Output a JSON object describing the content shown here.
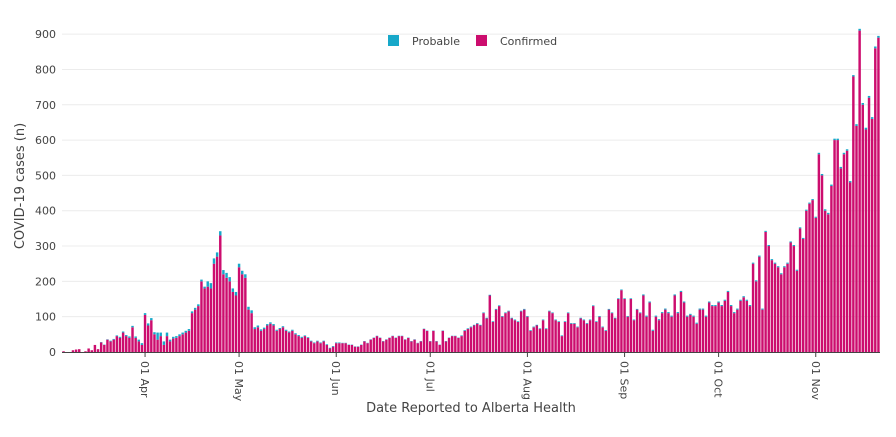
{
  "chart_data": {
    "type": "bar",
    "stacked": true,
    "xlabel": "Date Reported to Alberta Health",
    "ylabel": "COVID-19 cases (n)",
    "ylim": [
      0,
      940
    ],
    "yticks": [
      0,
      100,
      200,
      300,
      400,
      500,
      600,
      700,
      800,
      900
    ],
    "grid": true,
    "legend_position": "top-center",
    "x_start_date": "2020-03-06",
    "xticks": [
      {
        "label": "01 Apr",
        "date": "2020-04-01"
      },
      {
        "label": "01 May",
        "date": "2020-05-01"
      },
      {
        "label": "01 Jun",
        "date": "2020-06-01"
      },
      {
        "label": "01 Jul",
        "date": "2020-07-01"
      },
      {
        "label": "01 Aug",
        "date": "2020-08-01"
      },
      {
        "label": "01 Sep",
        "date": "2020-09-01"
      },
      {
        "label": "01 Oct",
        "date": "2020-10-01"
      },
      {
        "label": "01 Nov",
        "date": "2020-11-01"
      }
    ],
    "series": [
      {
        "name": "Probable",
        "color": "#17a8c9",
        "values": [
          0,
          0,
          0,
          0,
          0,
          0,
          0,
          0,
          0,
          0,
          0,
          0,
          1,
          1,
          1,
          2,
          2,
          2,
          3,
          3,
          3,
          4,
          4,
          4,
          5,
          5,
          5,
          6,
          6,
          6,
          20,
          10,
          10,
          10,
          5,
          5,
          5,
          5,
          5,
          5,
          5,
          5,
          5,
          5,
          5,
          5,
          15,
          15,
          15,
          12,
          12,
          12,
          14,
          12,
          10,
          10,
          10,
          10,
          10,
          8,
          8,
          5,
          5,
          4,
          4,
          4,
          4,
          4,
          3,
          3,
          3,
          3,
          3,
          3,
          3,
          3,
          3,
          2,
          2,
          2,
          2,
          2,
          2,
          2,
          2,
          2,
          2,
          2,
          2,
          1,
          1,
          1,
          1,
          1,
          1,
          1,
          1,
          1,
          1,
          1,
          1,
          1,
          1,
          1,
          1,
          1,
          1,
          1,
          1,
          1,
          1,
          1,
          1,
          1,
          1,
          1,
          1,
          1,
          1,
          1,
          1,
          1,
          1,
          1,
          1,
          1,
          1,
          2,
          2,
          2,
          2,
          2,
          2,
          2,
          2,
          2,
          2,
          2,
          2,
          2,
          2,
          2,
          2,
          2,
          2,
          2,
          2,
          2,
          2,
          2,
          2,
          2,
          2,
          2,
          2,
          2,
          2,
          2,
          2,
          2,
          2,
          2,
          2,
          2,
          2,
          2,
          2,
          2,
          2,
          2,
          2,
          2,
          2,
          2,
          2,
          2,
          2,
          2,
          2,
          2,
          2,
          2,
          2,
          2,
          2,
          3,
          3,
          3,
          3,
          3,
          3,
          3,
          3,
          3,
          3,
          3,
          3,
          3,
          3,
          3,
          3,
          3,
          3,
          3,
          3,
          3,
          3,
          3,
          3,
          3,
          3,
          3,
          3,
          3,
          3,
          3,
          3,
          3,
          3,
          3,
          3,
          3,
          3,
          3,
          3,
          3,
          3,
          3,
          3,
          3,
          3,
          3,
          3,
          3,
          3,
          3,
          3,
          3,
          3,
          3,
          3,
          4,
          4,
          4,
          4,
          4,
          4,
          4,
          4,
          4,
          4,
          4,
          4,
          5,
          5,
          5,
          5,
          5,
          5,
          5,
          5,
          5,
          5,
          5,
          5,
          6,
          6,
          6,
          6,
          6,
          6,
          6,
          6,
          6,
          6,
          6,
          6,
          6,
          6,
          6,
          6,
          6,
          6,
          6
        ]
      },
      {
        "name": "Confirmed",
        "color": "#cc0d6e",
        "values": [
          2,
          0,
          0,
          5,
          7,
          8,
          0,
          2,
          10,
          5,
          20,
          8,
          27,
          20,
          35,
          30,
          35,
          45,
          40,
          55,
          45,
          40,
          70,
          40,
          30,
          20,
          105,
          75,
          90,
          50,
          35,
          45,
          20,
          45,
          30,
          38,
          40,
          45,
          50,
          55,
          60,
          110,
          120,
          130,
          200,
          180,
          185,
          180,
          250,
          270,
          330,
          220,
          210,
          200,
          170,
          160,
          240,
          220,
          210,
          120,
          110,
          65,
          70,
          60,
          65,
          75,
          80,
          75,
          60,
          65,
          70,
          60,
          55,
          60,
          50,
          45,
          40,
          45,
          40,
          30,
          25,
          30,
          25,
          30,
          20,
          10,
          15,
          25,
          25,
          25,
          25,
          20,
          20,
          15,
          15,
          20,
          30,
          25,
          35,
          40,
          45,
          40,
          30,
          35,
          40,
          45,
          40,
          45,
          45,
          35,
          40,
          30,
          35,
          25,
          30,
          65,
          60,
          30,
          60,
          30,
          20,
          60,
          30,
          40,
          45,
          45,
          40,
          45,
          60,
          65,
          70,
          75,
          80,
          75,
          110,
          95,
          160,
          85,
          120,
          130,
          100,
          110,
          115,
          95,
          90,
          85,
          115,
          120,
          100,
          60,
          70,
          75,
          65,
          90,
          65,
          115,
          110,
          90,
          85,
          45,
          85,
          110,
          80,
          80,
          70,
          95,
          90,
          80,
          90,
          130,
          85,
          100,
          70,
          60,
          120,
          110,
          95,
          150,
          175,
          150,
          100,
          150,
          90,
          120,
          110,
          160,
          100,
          140,
          60,
          100,
          90,
          110,
          120,
          110,
          100,
          160,
          110,
          170,
          140,
          100,
          105,
          100,
          80,
          120,
          120,
          100,
          140,
          130,
          130,
          140,
          130,
          145,
          170,
          130,
          110,
          120,
          145,
          155,
          145,
          130,
          250,
          200,
          270,
          120,
          340,
          300,
          260,
          250,
          240,
          220,
          240,
          250,
          310,
          300,
          230,
          350,
          320,
          400,
          420,
          430,
          380,
          560,
          500,
          400,
          390,
          470,
          600,
          600,
          520,
          560,
          570,
          480,
          780,
          640,
          910,
          700,
          630,
          720,
          660,
          860,
          890
        ]
      }
    ]
  }
}
